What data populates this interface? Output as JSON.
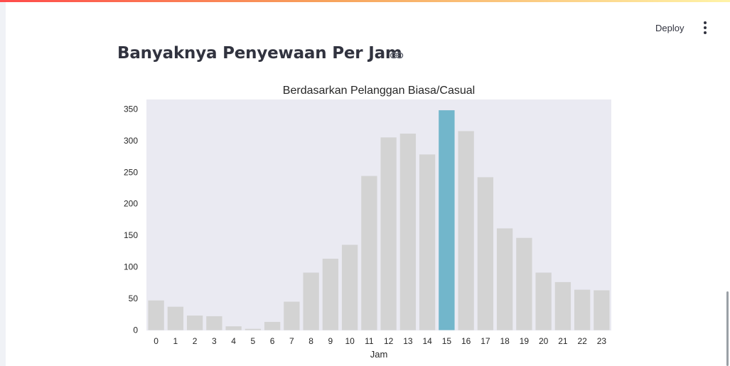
{
  "header": {
    "deploy_label": "Deploy",
    "menu_icon": "more-vert-icon"
  },
  "page": {
    "title": "Banyaknya Penyewaan Per Jam",
    "link_icon": "link-icon"
  },
  "colors": {
    "accent_gradient_start": "#ff4b4b",
    "accent_gradient_end": "#fff3a8",
    "plot_background": "#eaeaf2",
    "bar_default": "#d3d3d3",
    "bar_highlight": "#72b6cb"
  },
  "chart_data": {
    "type": "bar",
    "title": "Berdasarkan Pelanggan Biasa/Casual",
    "xlabel": "Jam",
    "ylabel": "",
    "categories": [
      "0",
      "1",
      "2",
      "3",
      "4",
      "5",
      "6",
      "7",
      "8",
      "9",
      "10",
      "11",
      "12",
      "13",
      "14",
      "15",
      "16",
      "17",
      "18",
      "19",
      "20",
      "21",
      "22",
      "23"
    ],
    "values": [
      47,
      37,
      23,
      22,
      6,
      2,
      13,
      45,
      91,
      113,
      135,
      244,
      305,
      311,
      278,
      348,
      315,
      242,
      161,
      146,
      91,
      76,
      64,
      63
    ],
    "highlight_category": "15",
    "ylim": [
      0,
      360
    ],
    "yticks": [
      0,
      50,
      100,
      150,
      200,
      250,
      300,
      350
    ],
    "grid": false
  }
}
